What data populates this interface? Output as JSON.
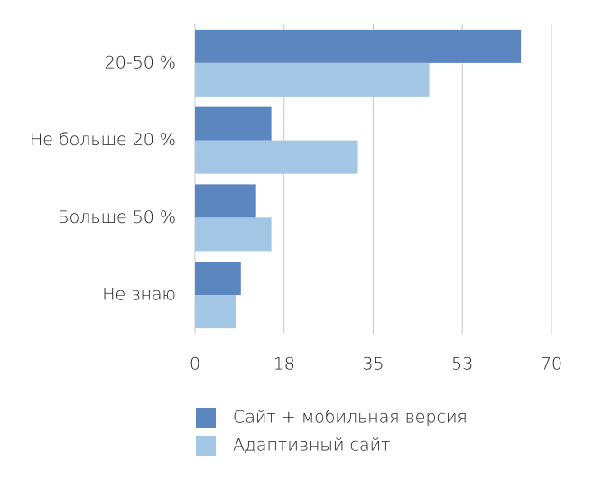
{
  "chart_data": {
    "type": "barh",
    "categories": [
      "20-50 %",
      "Не больше 20 %",
      "Больше 50 %",
      "Не знаю"
    ],
    "series": [
      {
        "name": "Сайт + мобильная версия",
        "color": "#5b86c0",
        "values": [
          64,
          15,
          12,
          9
        ]
      },
      {
        "name": "Адаптивный сайт",
        "color": "#a3c6e4",
        "values": [
          46,
          32,
          15,
          8
        ]
      }
    ],
    "xlim": [
      0,
      70
    ],
    "xticks": [
      0,
      {
        "value": 17.5,
        "label": "18"
      },
      35,
      {
        "value": 52.5,
        "label": "53"
      },
      70
    ],
    "grid": true,
    "legend": "bottom"
  }
}
